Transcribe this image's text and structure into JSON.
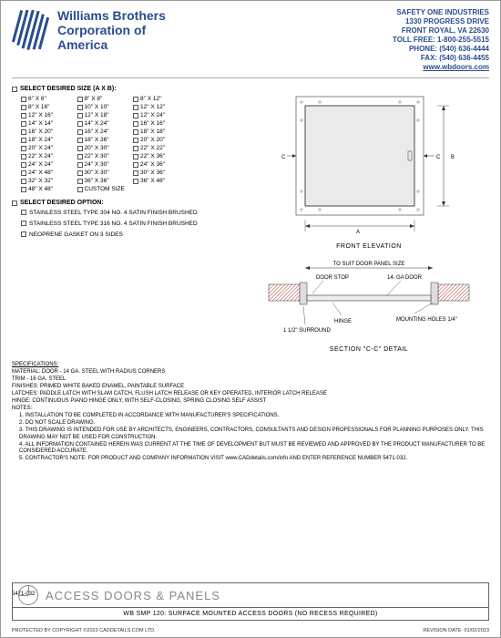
{
  "header": {
    "company_line1": "Williams Brothers",
    "company_line2": "Corporation of",
    "company_line3": "America",
    "contact": {
      "name": "SAFETY ONE INDUSTRIES",
      "addr1": "1330 PROGRESS DRIVE",
      "addr2": "FRONT ROYAL, VA 22630",
      "tollfree": "TOLL FREE: 1-800-255-5515",
      "phone": "PHONE: (540) 636-4444",
      "fax": "FAX: (540) 636-4455",
      "url": "www.wbdoors.com"
    }
  },
  "sections": {
    "size_head": "SELECT DESIRED SIZE (A X B):",
    "option_head": "SELECT DESIRED OPTION:"
  },
  "sizes": [
    "6\" X 6\"",
    "8\" X 8\"",
    "8\" X 12\"",
    "",
    "8\" X 16\"",
    "10\" X 10\"",
    "12\" X 12\"",
    "",
    "12\" X 16\"",
    "12\" X 18\"",
    "12\" X 24\"",
    "",
    "14\" X 14\"",
    "14\" X 24\"",
    "16\" X 16\"",
    "",
    "16\" X 20\"",
    "16\" X 24\"",
    "18\" X 18\"",
    "",
    "18\" X 24\"",
    "18\" X 36\"",
    "20\" X 20\"",
    "",
    "20\" X 24\"",
    "20\" X 30\"",
    "22\" X 22\"",
    "",
    "22\" X 24\"",
    "22\" X 30\"",
    "22\" X 36\"",
    "",
    "24\" X 24\"",
    "24\" X 30\"",
    "24\" X 36\"",
    "",
    "24\" X 48\"",
    "30\" X 30\"",
    "30\" X 36\"",
    "",
    "32\" X 32\"",
    "36\" X 36\"",
    "36\" X 48\"",
    "",
    "48\" X 48\"",
    "CUSTOM SIZE",
    "",
    ""
  ],
  "options": [
    "STAINLESS STEEL TYPE 304 NO. 4 SATIN FINISH BRUSHED",
    "STAINLESS STEEL TYPE 316 NO. 4 SATIN FINISH BRUSHED",
    "NEOPRENE GASKET ON 3 SIDES"
  ],
  "drawings": {
    "front_label": "FRONT ELEVATION",
    "section_label": "SECTION \"C-C\" DETAIL",
    "dim_a": "A",
    "dim_b": "B",
    "dim_c_left": "C",
    "dim_c_right": "C",
    "door_panel": "TO SUIT DOOR PANEL SIZE",
    "door_stop": "DOOR STOP",
    "ga_door": "14. GA DOOR",
    "hinge": "HINGE",
    "surround": "1 1/2\" SURROUND",
    "mounting": "MOUNTING HOLES 1/4\""
  },
  "specs": {
    "heading": "SPECIFICATIONS:",
    "material": "MATERIAL: DOOR - 14 GA. STEEL WITH RADIUS CORNERS",
    "trim": "TRIM - 16 GA. STEEL",
    "finishes": "FINISHES: PRIMED WHITE BAKED ENAMEL, PAINTABLE SURFACE",
    "latches": "LATCHES: PADDLE LATCH WITH SLAM CATCH, FLUSH LATCH RELEASE OR KEY OPERATED, INTERIOR LATCH RELEASE",
    "hinge": "HINGE: CONTINUOUS PIANO HINGE ONLY, WITH SELF-CLOSING, SPRING CLOSING SELF ASSIST",
    "notes_head": "NOTES:",
    "notes": [
      "1.  INSTALLATION TO BE COMPLETED IN ACCORDANCE WITH MANUFACTURER'S SPECIFICATIONS.",
      "2.  DO NOT SCALE DRAWING.",
      "3.  THIS DRAWING IS INTENDED FOR USE BY ARCHITECTS, ENGINEERS, CONTRACTORS, CONSULTANTS AND DESIGN PROFESSIONALS FOR PLANNING PURPOSES ONLY.  THIS DRAWING MAY NOT BE USED FOR CONSTRUCTION.",
      "4.  ALL INFORMATION CONTAINED HEREIN WAS CURRENT AT THE TIME OF DEVELOPMENT BUT MUST BE REVIEWED AND APPROVED BY THE PRODUCT MANUFACTURER TO BE CONSIDERED ACCURATE.",
      "5.  CONTRACTOR'S NOTE: FOR PRODUCT AND COMPANY INFORMATION VISIT www.CADdetails.com/info AND ENTER REFERENCE NUMBER  5471-032."
    ]
  },
  "titleblock": {
    "category": "ACCESS DOORS & PANELS",
    "title": "WB SMP 120: SURFACE MOUNTED ACCESS DOORS (NO RECESS REQUIRED)"
  },
  "footer": {
    "ref": "5471-032",
    "copyright": "PROTECTED BY COPYRIGHT ©2023 CADDETAILS.COM LTD.",
    "revision": "REVISION DATE: 01/02/2023"
  },
  "colors": {
    "brand": "#2a4d8f",
    "hatch": "#c05048",
    "line": "#333333"
  }
}
